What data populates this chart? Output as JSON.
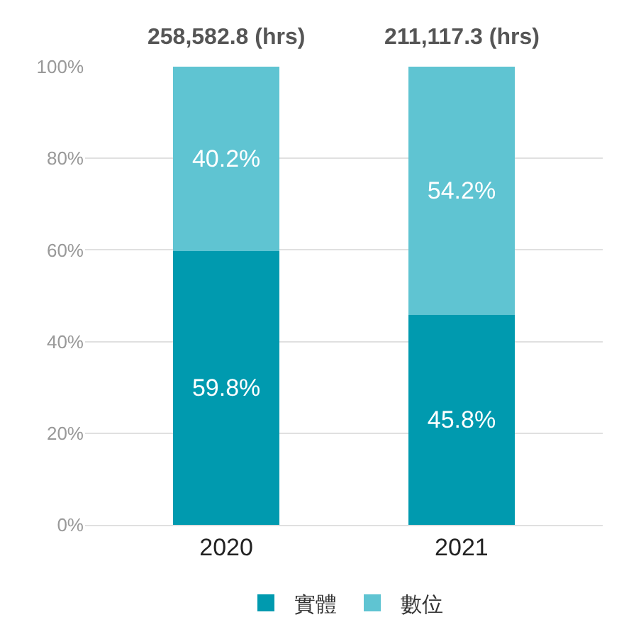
{
  "chart_data": {
    "type": "bar",
    "stacked": true,
    "categories": [
      "2020",
      "2021"
    ],
    "series": [
      {
        "name": "實體",
        "color": "#009aaf",
        "values": [
          59.8,
          45.8
        ],
        "value_labels": [
          "59.8%",
          "45.8%"
        ]
      },
      {
        "name": "數位",
        "color": "#5fc4d2",
        "values": [
          40.2,
          54.2
        ],
        "value_labels": [
          "40.2%",
          "54.2%"
        ]
      }
    ],
    "annotations": [
      {
        "text": "258,582.8 (hrs)",
        "x": "2020",
        "y": 100
      },
      {
        "text": "211,117.3 (hrs)",
        "x": "2021",
        "y": 100
      }
    ],
    "ylim": [
      0,
      100
    ],
    "yticks": [
      {
        "value": 0,
        "label": "0%"
      },
      {
        "value": 20,
        "label": "20%"
      },
      {
        "value": 40,
        "label": "40%"
      },
      {
        "value": 60,
        "label": "60%"
      },
      {
        "value": 80,
        "label": "80%"
      },
      {
        "value": 100,
        "label": "100%"
      }
    ],
    "grid": "y",
    "legend": "bottom"
  }
}
